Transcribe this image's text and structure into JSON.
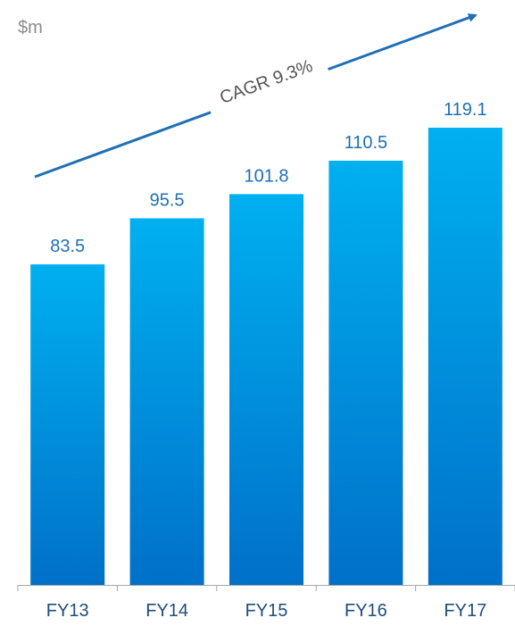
{
  "chart_data": {
    "type": "bar",
    "unit_label": "$m",
    "categories": [
      "FY13",
      "FY14",
      "FY15",
      "FY16",
      "FY17"
    ],
    "values": [
      83.5,
      95.5,
      101.8,
      110.5,
      119.1
    ],
    "data_labels": [
      "83.5",
      "95.5",
      "101.8",
      "110.5",
      "119.1"
    ],
    "annotation": "CAGR 9.3%",
    "ylim": [
      0,
      119.1
    ],
    "grid": false,
    "legend": "none",
    "colors": {
      "bar_top": "#00b0f0",
      "bar_bottom": "#0070c8",
      "data_label": "#1f6fb5",
      "axis": "#a6a6a6",
      "tick_label": "#1f4e79",
      "arrow": "#1f6fb5",
      "annotation": "#555555"
    }
  }
}
